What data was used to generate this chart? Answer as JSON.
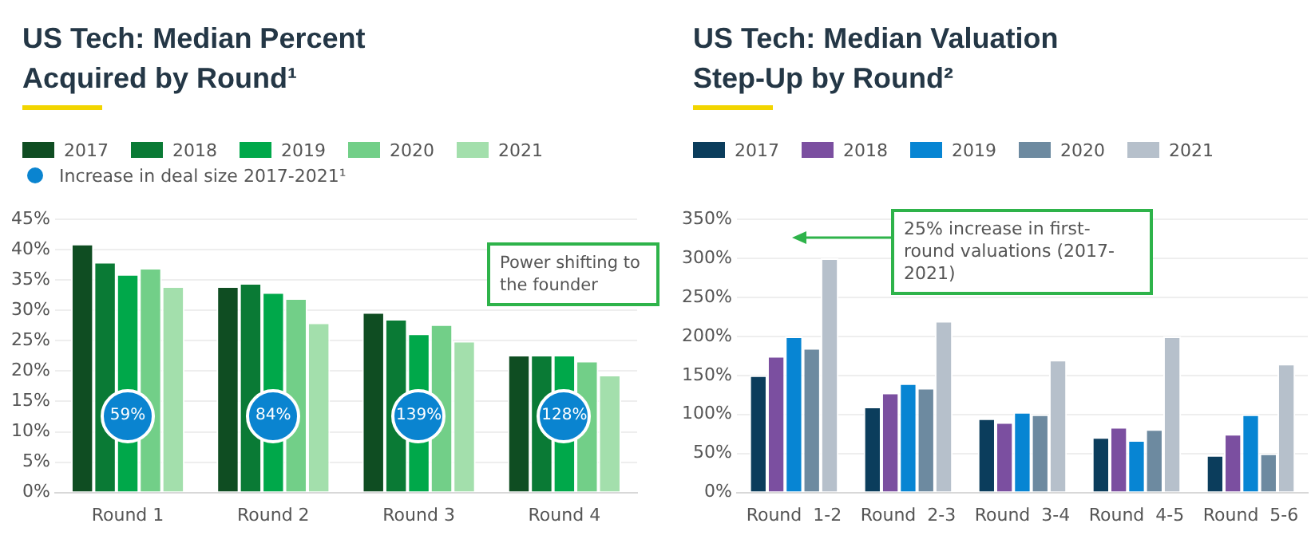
{
  "chart_data": [
    {
      "type": "bar",
      "title": "US Tech: Median Percent Acquired by Round¹",
      "categories": [
        "Round 1",
        "Round 2",
        "Round 3",
        "Round 4"
      ],
      "series": [
        {
          "name": "2017",
          "color": "#0f4d22",
          "values": [
            41,
            34,
            29.7,
            22.7
          ]
        },
        {
          "name": "2018",
          "color": "#0a7a35",
          "values": [
            38,
            34.5,
            28.6,
            22.7
          ]
        },
        {
          "name": "2019",
          "color": "#00a84a",
          "values": [
            36,
            33,
            26.2,
            22.7
          ]
        },
        {
          "name": "2020",
          "color": "#72cf88",
          "values": [
            37,
            32,
            27.7,
            21.7
          ]
        },
        {
          "name": "2021",
          "color": "#a3dfac",
          "values": [
            34,
            28,
            25,
            19.4
          ]
        }
      ],
      "ylim": [
        0,
        45
      ],
      "yticks": [
        {
          "value": 0,
          "label": "0%"
        },
        {
          "value": 5,
          "label": "5%"
        },
        {
          "value": 10,
          "label": "10%"
        },
        {
          "value": 15,
          "label": "15%"
        },
        {
          "value": 20,
          "label": "20%"
        },
        {
          "value": 25,
          "label": "25%"
        },
        {
          "value": 30,
          "label": "30%"
        },
        {
          "value": 35,
          "label": "35%"
        },
        {
          "value": 40,
          "label": "40%"
        },
        {
          "value": 45,
          "label": "45%"
        }
      ],
      "grid": "y",
      "legend": "top",
      "annotations": [
        "Increase in deal size 2017-2021¹",
        {
          "text": "59%",
          "x": "Round 1"
        },
        {
          "text": "84%",
          "x": "Round 2"
        },
        {
          "text": "139%",
          "x": "Round 3"
        },
        {
          "text": "128%",
          "x": "Round 4"
        },
        "Power shifting to the founder"
      ]
    },
    {
      "type": "bar",
      "title": "US Tech: Median Valuation Step-Up by Round²",
      "categories": [
        "Round  1-2",
        "Round  2-3",
        "Round  3-4",
        "Round  4-5",
        "Round  5-6"
      ],
      "series": [
        {
          "name": "2017",
          "color": "#0b3d5c",
          "values": [
            150,
            110,
            95,
            71,
            48
          ]
        },
        {
          "name": "2018",
          "color": "#7b4fa0",
          "values": [
            175,
            128,
            90,
            84,
            75
          ]
        },
        {
          "name": "2019",
          "color": "#0785d3",
          "values": [
            200,
            140,
            103,
            67,
            100
          ]
        },
        {
          "name": "2020",
          "color": "#6d8aa0",
          "values": [
            185,
            134,
            100,
            81,
            50
          ]
        },
        {
          "name": "2021",
          "color": "#b6c0cb",
          "values": [
            300,
            220,
            170,
            200,
            165
          ]
        }
      ],
      "ylim": [
        0,
        350
      ],
      "yticks": [
        {
          "value": 0,
          "label": "0%"
        },
        {
          "value": 50,
          "label": "50%"
        },
        {
          "value": 100,
          "label": "100%"
        },
        {
          "value": 150,
          "label": "150%"
        },
        {
          "value": 200,
          "label": "200%"
        },
        {
          "value": 250,
          "label": "250%"
        },
        {
          "value": 300,
          "label": "300%"
        },
        {
          "value": 350,
          "label": "350%"
        }
      ],
      "grid": "y",
      "legend": "top",
      "annotations": [
        "25% increase in first-round valuations (2017-2021)"
      ]
    }
  ]
}
